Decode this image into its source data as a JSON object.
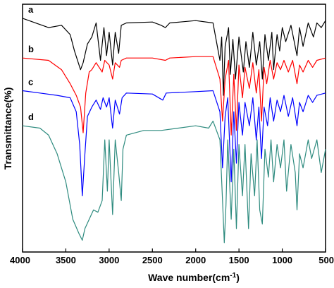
{
  "chart_data": {
    "type": "line",
    "title": "",
    "xlabel": "Wave number(cm",
    "xlabel_superscript": "-1",
    "xlabel_suffix": ")",
    "ylabel": "Transmittance(%)",
    "xlim": [
      4000,
      500
    ],
    "x_reversed": true,
    "x_ticks": [
      4000,
      3500,
      3000,
      2500,
      2000,
      1500,
      1000,
      500
    ],
    "x_tick_labels": [
      "4000",
      "3500",
      "3000",
      "2500",
      "2000",
      "1500",
      "1000",
      "500"
    ],
    "y_ticks_shown": false,
    "grid": false,
    "series": [
      {
        "name": "a",
        "color": "#000000",
        "baseline": 3.5,
        "points": [
          [
            4000,
            3.5
          ],
          [
            3700,
            3.3
          ],
          [
            3550,
            3.35
          ],
          [
            3450,
            3.15
          ],
          [
            3400,
            2.8
          ],
          [
            3330,
            2.4
          ],
          [
            3300,
            2.55
          ],
          [
            3250,
            2.95
          ],
          [
            3200,
            3.1
          ],
          [
            3150,
            3.4
          ],
          [
            3100,
            2.6
          ],
          [
            3060,
            3.3
          ],
          [
            3030,
            2.7
          ],
          [
            3000,
            3.2
          ],
          [
            2960,
            2.5
          ],
          [
            2930,
            3.2
          ],
          [
            2890,
            2.75
          ],
          [
            2860,
            3.35
          ],
          [
            2800,
            3.4
          ],
          [
            2500,
            3.42
          ],
          [
            2400,
            3.35
          ],
          [
            2350,
            3.3
          ],
          [
            2300,
            3.4
          ],
          [
            2000,
            3.45
          ],
          [
            1800,
            3.4
          ],
          [
            1720,
            2.6
          ],
          [
            1700,
            3.1
          ],
          [
            1680,
            1.85
          ],
          [
            1660,
            2.9
          ],
          [
            1620,
            3.3
          ],
          [
            1600,
            2.3
          ],
          [
            1570,
            3.05
          ],
          [
            1540,
            2.2
          ],
          [
            1500,
            3.1
          ],
          [
            1450,
            2.35
          ],
          [
            1420,
            3.0
          ],
          [
            1380,
            2.45
          ],
          [
            1340,
            3.2
          ],
          [
            1300,
            2.5
          ],
          [
            1260,
            3.0
          ],
          [
            1230,
            2.2
          ],
          [
            1200,
            3.15
          ],
          [
            1160,
            2.6
          ],
          [
            1120,
            3.2
          ],
          [
            1100,
            2.4
          ],
          [
            1060,
            3.15
          ],
          [
            1030,
            2.8
          ],
          [
            1000,
            3.3
          ],
          [
            960,
            3.0
          ],
          [
            900,
            3.35
          ],
          [
            830,
            2.7
          ],
          [
            800,
            3.3
          ],
          [
            760,
            2.9
          ],
          [
            700,
            3.4
          ],
          [
            640,
            3.1
          ],
          [
            600,
            3.4
          ],
          [
            550,
            3.3
          ],
          [
            500,
            3.45
          ]
        ]
      },
      {
        "name": "b",
        "color": "#ff0000",
        "baseline": 2.65,
        "points": [
          [
            4000,
            2.65
          ],
          [
            3700,
            2.6
          ],
          [
            3550,
            2.4
          ],
          [
            3450,
            2.1
          ],
          [
            3380,
            1.85
          ],
          [
            3330,
            1.6
          ],
          [
            3300,
            1.05
          ],
          [
            3270,
            1.9
          ],
          [
            3230,
            2.35
          ],
          [
            3200,
            2.4
          ],
          [
            3150,
            2.55
          ],
          [
            3080,
            2.35
          ],
          [
            3050,
            2.6
          ],
          [
            3000,
            2.5
          ],
          [
            2960,
            2.2
          ],
          [
            2930,
            2.55
          ],
          [
            2880,
            2.45
          ],
          [
            2860,
            2.6
          ],
          [
            2800,
            2.65
          ],
          [
            2500,
            2.65
          ],
          [
            2350,
            2.6
          ],
          [
            2300,
            2.65
          ],
          [
            2000,
            2.68
          ],
          [
            1800,
            2.68
          ],
          [
            1720,
            2.2
          ],
          [
            1690,
            1.3
          ],
          [
            1660,
            2.2
          ],
          [
            1620,
            2.6
          ],
          [
            1590,
            1.0
          ],
          [
            1560,
            2.3
          ],
          [
            1530,
            1.1
          ],
          [
            1500,
            2.5
          ],
          [
            1460,
            1.8
          ],
          [
            1430,
            2.45
          ],
          [
            1380,
            2.0
          ],
          [
            1340,
            2.55
          ],
          [
            1300,
            1.9
          ],
          [
            1270,
            2.4
          ],
          [
            1240,
            1.3
          ],
          [
            1210,
            2.45
          ],
          [
            1180,
            2.1
          ],
          [
            1140,
            2.6
          ],
          [
            1100,
            2.2
          ],
          [
            1060,
            2.55
          ],
          [
            1020,
            2.4
          ],
          [
            980,
            2.6
          ],
          [
            930,
            2.35
          ],
          [
            880,
            2.6
          ],
          [
            830,
            2.1
          ],
          [
            800,
            2.5
          ],
          [
            760,
            2.35
          ],
          [
            700,
            2.6
          ],
          [
            650,
            2.45
          ],
          [
            600,
            2.6
          ],
          [
            500,
            2.65
          ]
        ]
      },
      {
        "name": "c",
        "color": "#0000ff",
        "baseline": 1.95,
        "points": [
          [
            4000,
            1.95
          ],
          [
            3800,
            1.9
          ],
          [
            3600,
            1.85
          ],
          [
            3450,
            1.8
          ],
          [
            3380,
            1.5
          ],
          [
            3340,
            0.8
          ],
          [
            3310,
            -0.3
          ],
          [
            3280,
            0.6
          ],
          [
            3250,
            1.4
          ],
          [
            3200,
            1.6
          ],
          [
            3150,
            1.75
          ],
          [
            3100,
            1.55
          ],
          [
            3070,
            1.8
          ],
          [
            3030,
            1.6
          ],
          [
            3000,
            1.8
          ],
          [
            2960,
            1.15
          ],
          [
            2930,
            1.75
          ],
          [
            2880,
            1.45
          ],
          [
            2850,
            1.8
          ],
          [
            2800,
            1.9
          ],
          [
            2500,
            1.88
          ],
          [
            2380,
            1.75
          ],
          [
            2340,
            1.9
          ],
          [
            2000,
            1.93
          ],
          [
            1800,
            1.95
          ],
          [
            1720,
            1.5
          ],
          [
            1690,
            0.3
          ],
          [
            1660,
            1.4
          ],
          [
            1630,
            1.8
          ],
          [
            1590,
            0.0
          ],
          [
            1560,
            1.5
          ],
          [
            1530,
            0.4
          ],
          [
            1500,
            1.7
          ],
          [
            1460,
            1.0
          ],
          [
            1430,
            1.7
          ],
          [
            1380,
            1.2
          ],
          [
            1340,
            1.8
          ],
          [
            1300,
            0.9
          ],
          [
            1270,
            1.6
          ],
          [
            1240,
            0.5
          ],
          [
            1210,
            1.6
          ],
          [
            1170,
            1.2
          ],
          [
            1140,
            1.8
          ],
          [
            1100,
            1.3
          ],
          [
            1060,
            1.75
          ],
          [
            1020,
            1.5
          ],
          [
            980,
            1.85
          ],
          [
            930,
            1.4
          ],
          [
            880,
            1.8
          ],
          [
            830,
            1.2
          ],
          [
            800,
            1.7
          ],
          [
            760,
            1.5
          ],
          [
            700,
            1.85
          ],
          [
            650,
            1.7
          ],
          [
            600,
            1.85
          ],
          [
            500,
            1.9
          ]
        ]
      },
      {
        "name": "d",
        "color": "#2e8b7f",
        "baseline": 1.2,
        "points": [
          [
            4000,
            1.2
          ],
          [
            3800,
            1.15
          ],
          [
            3700,
            1.0
          ],
          [
            3600,
            0.6
          ],
          [
            3500,
            0.0
          ],
          [
            3420,
            -0.8
          ],
          [
            3350,
            -1.1
          ],
          [
            3310,
            -1.25
          ],
          [
            3280,
            -1.0
          ],
          [
            3230,
            -0.8
          ],
          [
            3180,
            -0.6
          ],
          [
            3130,
            -0.65
          ],
          [
            3080,
            -0.4
          ],
          [
            3050,
            0.9
          ],
          [
            3020,
            -0.2
          ],
          [
            3000,
            0.9
          ],
          [
            2960,
            -0.7
          ],
          [
            2930,
            0.9
          ],
          [
            2890,
            0.2
          ],
          [
            2860,
            -0.4
          ],
          [
            2840,
            0.7
          ],
          [
            2800,
            1.0
          ],
          [
            2600,
            1.1
          ],
          [
            2400,
            1.1
          ],
          [
            2200,
            1.15
          ],
          [
            2000,
            1.2
          ],
          [
            1850,
            1.15
          ],
          [
            1800,
            1.3
          ],
          [
            1720,
            0.9
          ],
          [
            1690,
            -0.4
          ],
          [
            1670,
            -1.3
          ],
          [
            1650,
            -0.5
          ],
          [
            1630,
            0.9
          ],
          [
            1590,
            -0.8
          ],
          [
            1560,
            0.7
          ],
          [
            1530,
            -1.0
          ],
          [
            1500,
            0.8
          ],
          [
            1460,
            -0.3
          ],
          [
            1430,
            0.8
          ],
          [
            1390,
            -1.0
          ],
          [
            1360,
            0.6
          ],
          [
            1320,
            -0.3
          ],
          [
            1290,
            0.9
          ],
          [
            1260,
            -0.6
          ],
          [
            1230,
            -0.9
          ],
          [
            1200,
            0.7
          ],
          [
            1160,
            0.1
          ],
          [
            1130,
            0.9
          ],
          [
            1100,
            0.0
          ],
          [
            1060,
            0.8
          ],
          [
            1020,
            0.3
          ],
          [
            980,
            0.9
          ],
          [
            950,
            -0.2
          ],
          [
            900,
            0.8
          ],
          [
            850,
            0.2
          ],
          [
            830,
            -0.6
          ],
          [
            800,
            0.6
          ],
          [
            760,
            0.3
          ],
          [
            700,
            0.9
          ],
          [
            660,
            0.5
          ],
          [
            600,
            0.9
          ],
          [
            550,
            0.2
          ],
          [
            500,
            0.7
          ]
        ]
      }
    ]
  }
}
